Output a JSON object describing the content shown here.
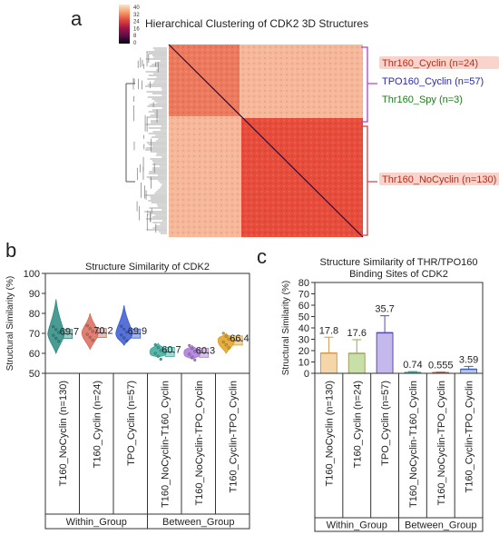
{
  "panels": {
    "a": "a",
    "b": "b",
    "c": "c"
  },
  "heatmap": {
    "title": "Hierarchical Clustering of CDK2 3D Structures",
    "colorbar_ticks": [
      "40",
      "32",
      "24",
      "16",
      "8",
      "0"
    ],
    "colors": {
      "high": "#f7b89a",
      "mid": "#e84c3a",
      "low": "#7a1040",
      "diag": "#2a0a3a"
    },
    "labels": [
      {
        "text": "Thr160_Cyclin (n=24)",
        "color": "#b03020",
        "bg": "#f8d4cc"
      },
      {
        "text": "TPO160_Cyclin (n=57)",
        "color": "#2a2aa0",
        "bg": "#ffffff"
      },
      {
        "text": "Thr160_Spy (n=3)",
        "color": "#1f7a1f",
        "bg": "#ffffff"
      },
      {
        "text": "Thr160_NoCyclin (n=130)",
        "color": "#b03020",
        "bg": "#f8d4cc"
      }
    ],
    "bracket_colors": {
      "upper": "#b040d0",
      "lower": "#d04040"
    }
  },
  "chart_data": [
    {
      "type": "violin",
      "title": "Structure Similarity of CDK2",
      "ylabel": "Structural Similarity (%)",
      "ylim": [
        50,
        100
      ],
      "yticks": [
        "50",
        "60",
        "70",
        "80",
        "90",
        "100"
      ],
      "categories": [
        "T160_NoCyclin (n=130)",
        "T160_Cyclin (n=24)",
        "TPO_Cyclin (n=57)",
        "T160_NoCyclin-T160_Cyclin",
        "T160_NoCyclin-TPO_Cyclin",
        "T160_Cyclin-TPO_Cyclin"
      ],
      "values": [
        69.7,
        70.2,
        69.9,
        60.7,
        60.3,
        66.4
      ],
      "value_labels": [
        "69.7",
        "70.2",
        "69.9",
        "60.7",
        "60.3",
        "66.4"
      ],
      "ranges": [
        [
          60,
          87
        ],
        [
          62,
          80
        ],
        [
          64,
          84
        ],
        [
          58,
          65
        ],
        [
          57,
          64
        ],
        [
          60,
          70
        ]
      ],
      "colors": [
        "#2a8a80",
        "#d86a5a",
        "#3a5ad0",
        "#3aa89a",
        "#a878d8",
        "#e0a020"
      ],
      "groups": [
        {
          "name": "Within_Group",
          "span": 3
        },
        {
          "name": "Between_Group",
          "span": 3
        }
      ]
    },
    {
      "type": "bar",
      "title_lines": [
        "Structure Similarity of THR/TPO160",
        "Binding Sites of CDK2"
      ],
      "ylabel": "Structural Similarity (%)",
      "ylim": [
        0,
        80
      ],
      "yticks": [
        "0",
        "10",
        "20",
        "30",
        "40",
        "50",
        "60",
        "70",
        "80"
      ],
      "categories": [
        "T160_NoCyclin (n=130)",
        "T160_Cyclin (n=24)",
        "TPO_Cyclin (n=57)",
        "T160_NoCyclin-T160_Cyclin",
        "T160_NoCyclin-TPO_Cyclin",
        "T160_Cyclin-TPO_Cyclin"
      ],
      "values": [
        17.8,
        17.6,
        35.7,
        0.74,
        0.555,
        3.59
      ],
      "value_labels": [
        "17.8",
        "17.6",
        "35.7",
        "0.74",
        "0.555",
        "3.59"
      ],
      "errors": [
        14,
        12,
        15,
        0.8,
        0.6,
        2.5
      ],
      "fill_colors": [
        "#f5d6a8",
        "#c8e0a8",
        "#c4b8ec",
        "#b8e0d8",
        "#f0c8c0",
        "#b8c8f0"
      ],
      "stroke_colors": [
        "#d89a50",
        "#a0a060",
        "#5a4ab0",
        "#40a090",
        "#c06050",
        "#4060c0"
      ],
      "groups": [
        {
          "name": "Within_Group",
          "span": 3
        },
        {
          "name": "Between_Group",
          "span": 3
        }
      ]
    }
  ]
}
